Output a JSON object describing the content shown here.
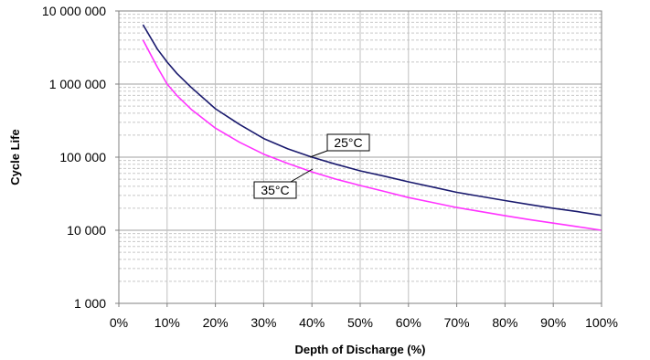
{
  "chart_data": {
    "type": "line",
    "title": "",
    "xlabel": "Depth of Discharge (%)",
    "ylabel": "Cycle Life",
    "x_scale": "linear",
    "y_scale": "log",
    "xlim": [
      0,
      100
    ],
    "ylim": [
      1000,
      10000000
    ],
    "x_ticks": [
      0,
      10,
      20,
      30,
      40,
      50,
      60,
      70,
      80,
      90,
      100
    ],
    "x_tick_labels": [
      "0%",
      "10%",
      "20%",
      "30%",
      "40%",
      "50%",
      "60%",
      "70%",
      "80%",
      "90%",
      "100%"
    ],
    "y_ticks": [
      1000,
      10000,
      100000,
      1000000,
      10000000
    ],
    "y_tick_labels": [
      "1 000",
      "10 000",
      "100 000",
      "1 000 000",
      "10 000 000"
    ],
    "grid": true,
    "legend": "none",
    "series": [
      {
        "name": "25°C",
        "color": "#1a1a6e",
        "x": [
          5,
          8,
          10,
          12,
          15,
          20,
          25,
          30,
          35,
          40,
          45,
          50,
          55,
          60,
          65,
          70,
          75,
          80,
          85,
          90,
          95,
          100
        ],
        "y": [
          6500000,
          3000000,
          2000000,
          1400000,
          900000,
          460000,
          280000,
          180000,
          130000,
          100000,
          80000,
          65000,
          55000,
          46000,
          39000,
          33000,
          29000,
          25500,
          22500,
          20000,
          18000,
          16000
        ]
      },
      {
        "name": "35°C",
        "color": "#ff33ff",
        "x": [
          5,
          8,
          10,
          12,
          15,
          20,
          25,
          30,
          35,
          40,
          45,
          50,
          55,
          60,
          65,
          70,
          75,
          80,
          85,
          90,
          95,
          100
        ],
        "y": [
          4000000,
          1700000,
          1000000,
          700000,
          450000,
          250000,
          160000,
          110000,
          82000,
          63000,
          50000,
          41000,
          34000,
          28000,
          24000,
          20500,
          18000,
          15800,
          14000,
          12500,
          11200,
          10000
        ]
      }
    ]
  }
}
